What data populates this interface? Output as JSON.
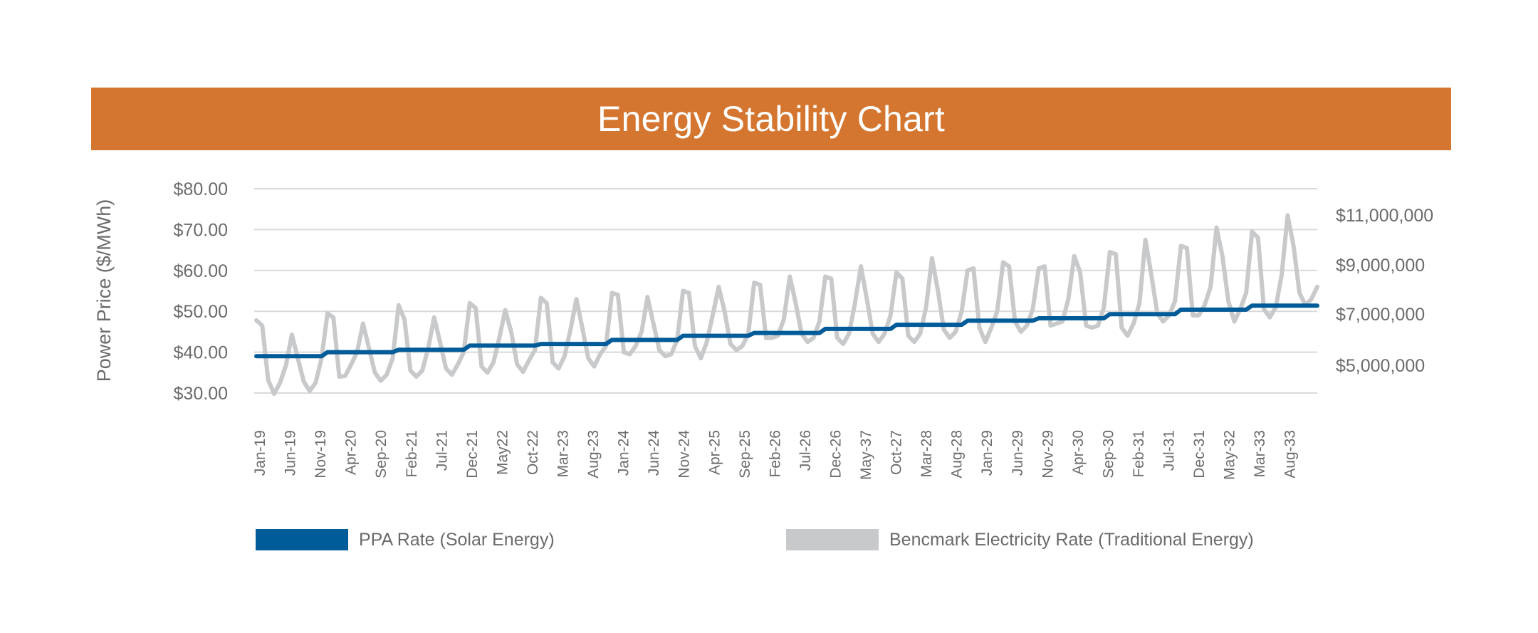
{
  "chart_data": {
    "type": "line",
    "title": "Energy Stability Chart",
    "ylabel": "Power Price ($/MWh)",
    "ylim": [
      30,
      80
    ],
    "y_ticks": [
      "$80.00",
      "$70.00",
      "$60.00",
      "$50.00",
      "$40.00",
      "$30.00"
    ],
    "y_tick_values": [
      80,
      70,
      60,
      50,
      40,
      30
    ],
    "y2_ticks": [
      "$11,000,000",
      "$9,000,000",
      "$7,000,000",
      "$5,000,000"
    ],
    "x_tick_labels": [
      "Jan-19",
      "Jun-19",
      "Nov-19",
      "Apr-20",
      "Sep-20",
      "Feb-21",
      "Jul-21",
      "Dec-21",
      "May22",
      "Oct-22",
      "Mar-23",
      "Aug-23",
      "Jan-24",
      "Jun-24",
      "Nov-24",
      "Apr-25",
      "Sep-25",
      "Feb-26",
      "Jul-26",
      "Dec-26",
      "May-37",
      "Oct-27",
      "Mar-28",
      "Aug-28",
      "Jan-29",
      "Jun-29",
      "Nov-29",
      "Apr-30",
      "Sep-30",
      "Feb-31",
      "Jul-31",
      "Dec-31",
      "May-32",
      "Mar-33",
      "Aug-33"
    ],
    "grid": true,
    "legend_position": "bottom",
    "colors": {
      "ppa": "#005b99",
      "benchmark": "#c8c9cb",
      "title_bar": "#d4762f",
      "grid": "#d9d9d9",
      "text": "#6b6b6b"
    },
    "series": [
      {
        "name": "PPA Rate (Solar Energy)",
        "values": [
          39.0,
          39.0,
          39.0,
          39.0,
          39.0,
          39.0,
          39.0,
          39.0,
          39.0,
          39.0,
          39.0,
          39.0,
          40.0,
          40.0,
          40.0,
          40.0,
          40.0,
          40.0,
          40.0,
          40.0,
          40.0,
          40.0,
          40.0,
          40.0,
          40.6,
          40.6,
          40.6,
          40.6,
          40.6,
          40.6,
          40.6,
          40.6,
          40.6,
          40.6,
          40.6,
          40.6,
          41.6,
          41.6,
          41.6,
          41.6,
          41.6,
          41.6,
          41.6,
          41.6,
          41.6,
          41.6,
          41.6,
          41.6,
          42.0,
          42.0,
          42.0,
          42.0,
          42.0,
          42.0,
          42.0,
          42.0,
          42.0,
          42.0,
          42.0,
          42.0,
          43.0,
          43.0,
          43.0,
          43.0,
          43.0,
          43.0,
          43.0,
          43.0,
          43.0,
          43.0,
          43.0,
          43.0,
          44.0,
          44.0,
          44.0,
          44.0,
          44.0,
          44.0,
          44.0,
          44.0,
          44.0,
          44.0,
          44.0,
          44.0,
          44.7,
          44.7,
          44.7,
          44.7,
          44.7,
          44.7,
          44.7,
          44.7,
          44.7,
          44.7,
          44.7,
          44.7,
          45.7,
          45.7,
          45.7,
          45.7,
          45.7,
          45.7,
          45.7,
          45.7,
          45.7,
          45.7,
          45.7,
          45.7,
          46.7,
          46.7,
          46.7,
          46.7,
          46.7,
          46.7,
          46.7,
          46.7,
          46.7,
          46.7,
          46.7,
          46.7,
          47.7,
          47.7,
          47.7,
          47.7,
          47.7,
          47.7,
          47.7,
          47.7,
          47.7,
          47.7,
          47.7,
          47.7,
          48.3,
          48.3,
          48.3,
          48.3,
          48.3,
          48.3,
          48.3,
          48.3,
          48.3,
          48.3,
          48.3,
          48.3,
          49.3,
          49.3,
          49.3,
          49.3,
          49.3,
          49.3,
          49.3,
          49.3,
          49.3,
          49.3,
          49.3,
          49.3,
          50.4,
          50.4,
          50.4,
          50.4,
          50.4,
          50.4,
          50.4,
          50.4,
          50.4,
          50.4,
          50.4,
          50.4,
          51.4,
          51.4,
          51.4,
          51.4,
          51.4,
          51.4,
          51.4,
          51.4,
          51.4,
          51.4,
          51.4,
          51.4
        ]
      },
      {
        "name": "Bencmark Electricity Rate (Traditional Energy)",
        "values": [
          47.8,
          46.5,
          33.2,
          29.8,
          32.5,
          36.8,
          44.3,
          38.5,
          32.8,
          30.5,
          32.5,
          38.5,
          49.5,
          48.5,
          34.0,
          34.2,
          37.0,
          40.0,
          47.0,
          41.0,
          35.0,
          33.0,
          34.5,
          38.5,
          51.5,
          48.0,
          35.5,
          34.0,
          35.5,
          41.0,
          48.5,
          42.5,
          36.0,
          34.5,
          37.0,
          40.0,
          52.0,
          50.8,
          36.5,
          35.0,
          37.5,
          43.5,
          50.3,
          45.0,
          37.0,
          35.2,
          38.0,
          40.5,
          53.3,
          52.0,
          37.5,
          36.0,
          39.0,
          45.5,
          53.0,
          46.0,
          38.5,
          36.5,
          39.5,
          41.5,
          54.5,
          54.0,
          40.0,
          39.5,
          41.5,
          45.0,
          53.5,
          47.0,
          40.5,
          39.0,
          39.5,
          43.0,
          55.0,
          54.5,
          41.5,
          38.5,
          42.5,
          49.0,
          56.0,
          50.0,
          42.0,
          40.5,
          41.5,
          44.5,
          57.0,
          56.5,
          43.5,
          43.5,
          44.0,
          48.0,
          58.5,
          52.0,
          44.5,
          42.5,
          43.5,
          47.5,
          58.5,
          58.0,
          43.5,
          42.0,
          44.5,
          52.0,
          61.0,
          53.0,
          44.5,
          42.5,
          44.5,
          49.0,
          59.5,
          58.0,
          44.0,
          42.5,
          44.5,
          51.0,
          63.0,
          55.0,
          45.5,
          43.5,
          45.0,
          50.0,
          60.0,
          60.5,
          46.0,
          42.5,
          46.0,
          50.0,
          62.0,
          61.0,
          47.5,
          45.0,
          46.5,
          50.5,
          60.5,
          61.0,
          46.5,
          47.0,
          47.5,
          53.0,
          63.5,
          59.5,
          46.5,
          46.0,
          46.5,
          51.0,
          64.5,
          64.0,
          46.0,
          44.0,
          47.0,
          52.0,
          67.5,
          59.0,
          49.5,
          47.5,
          49.0,
          52.5,
          66.0,
          65.5,
          49.0,
          49.0,
          51.5,
          56.0,
          70.5,
          63.5,
          52.5,
          47.5,
          50.5,
          54.5,
          69.5,
          68.0,
          50.5,
          48.5,
          51.0,
          59.0,
          73.5,
          66.0,
          54.5,
          51.5,
          53.0,
          56.0
        ]
      }
    ]
  }
}
